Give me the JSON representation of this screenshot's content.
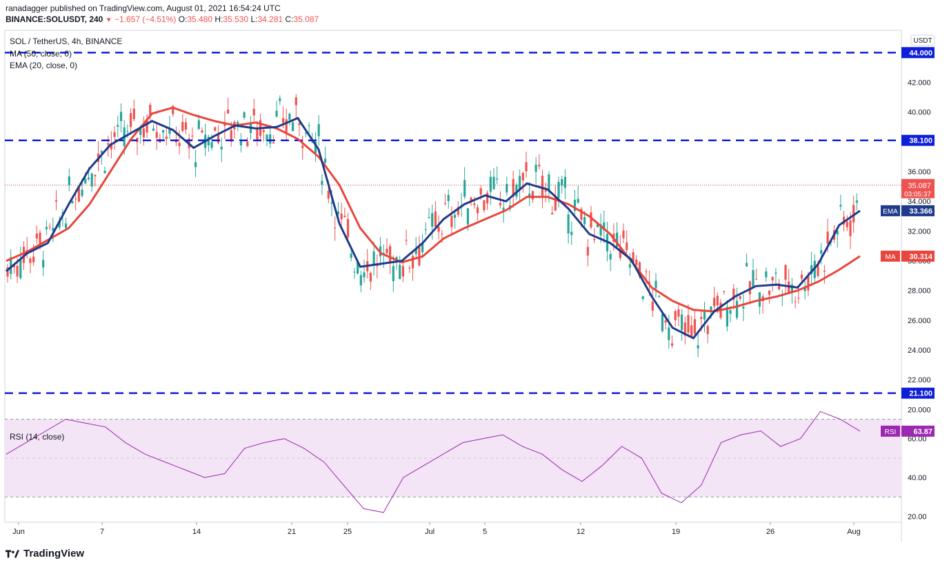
{
  "header": {
    "author": "ranadagger",
    "published_text": "published on TradingView.com, August 01, 2021 16:54:24 UTC",
    "symbol": "BINANCE:SOLUSDT, 240",
    "change": "−1.657 (−4.51%)",
    "open_label": "O:",
    "open": "35.480",
    "high_label": "H:",
    "high": "35.530",
    "low_label": "L:",
    "low": "34.281",
    "close_label": "C:",
    "close": "35.087"
  },
  "legend": {
    "title": "SOL / TetherUS, 4h, BINANCE",
    "ma": "MA (50, close, 0)",
    "ema": "EMA (20, close, 0)",
    "rsi": "RSI (14, close)"
  },
  "currency_badge": "USDT",
  "footer": {
    "brand": "TradingView"
  },
  "colors": {
    "up": "#26a69a",
    "down": "#ef5350",
    "ema": "#1e3a8a",
    "ma": "#e8453c",
    "level": "#0d1fd8",
    "rsi_line": "#9c27b0",
    "rsi_band": "#f3e5f5",
    "price_line": "#b23c34"
  },
  "chart_data": [
    {
      "type": "line",
      "title": "SOL / TetherUS, 4h, BINANCE",
      "ylim": [
        19,
        45.5
      ],
      "y_ticks": [
        20.0,
        22.0,
        24.0,
        26.0,
        28.0,
        30.0,
        32.0,
        34.0,
        36.0,
        38.0,
        40.0,
        42.0,
        44.0
      ],
      "y_tick_labels": [
        "20.000",
        "22.000",
        "24.000",
        "26.000",
        "28.000",
        "30.000",
        "32.000",
        "34.000",
        "36.000",
        "38.000",
        "40.000",
        "42.000",
        "44.000"
      ],
      "x_tick_labels": [
        "Jun",
        "7",
        "14",
        "21",
        "25",
        "Jul",
        "5",
        "12",
        "19",
        "26",
        "Aug"
      ],
      "horizontal_levels": [
        44.0,
        38.1,
        21.1
      ],
      "horizontal_level_labels": [
        "44.000",
        "38.100",
        "21.100"
      ],
      "current_price": 35.087,
      "current_price_label": "35.087",
      "countdown_label": "03:05:37",
      "ema_last_label": "33.366",
      "ma_last_label": "30.314",
      "ema_tag": "EMA",
      "ma_tag": "MA",
      "series": [
        {
          "name": "EMA (20, close, 0)",
          "values": [
            29.3,
            30.5,
            31.2,
            33.8,
            36.2,
            37.8,
            38.6,
            39.4,
            38.8,
            37.6,
            38.4,
            39.1,
            38.9,
            39.0,
            39.6,
            37.5,
            32.5,
            29.6,
            29.8,
            30.0,
            31.2,
            32.8,
            33.8,
            34.4,
            34.0,
            35.2,
            34.8,
            33.5,
            31.8,
            31.2,
            30.1,
            27.6,
            25.5,
            24.8,
            26.6,
            27.6,
            28.3,
            28.4,
            28.2,
            29.8,
            32.4,
            33.366
          ]
        },
        {
          "name": "MA (50, close, 0)",
          "values": [
            30.0,
            30.6,
            31.4,
            32.2,
            33.8,
            36.0,
            38.2,
            39.9,
            40.3,
            39.8,
            39.4,
            39.1,
            39.3,
            38.9,
            38.2,
            37.0,
            35.1,
            32.2,
            30.5,
            29.9,
            30.3,
            31.5,
            32.2,
            32.8,
            33.4,
            34.3,
            34.3,
            33.8,
            33.0,
            31.8,
            30.0,
            28.2,
            27.3,
            26.7,
            26.6,
            26.9,
            27.3,
            27.6,
            28.0,
            28.6,
            29.4,
            30.314
          ]
        }
      ]
    },
    {
      "type": "line",
      "title": "RSI (14, close)",
      "ylim": [
        17,
        67
      ],
      "y_ticks": [
        20.0,
        40.0,
        60.0
      ],
      "y_tick_labels": [
        "20.00",
        "40.00",
        "60.00"
      ],
      "bands": [
        30,
        70
      ],
      "last_label": "63.87",
      "tag": "RSI",
      "series": [
        {
          "name": "RSI (14, close)",
          "values": [
            52,
            58,
            64,
            70,
            68,
            66,
            58,
            52,
            48,
            44,
            40,
            42,
            55,
            58,
            60,
            55,
            48,
            36,
            24,
            22,
            40,
            46,
            52,
            58,
            60,
            62,
            56,
            52,
            44,
            38,
            46,
            56,
            50,
            32,
            27,
            36,
            58,
            62,
            64,
            56,
            60,
            74,
            70,
            63.87
          ]
        }
      ]
    }
  ]
}
